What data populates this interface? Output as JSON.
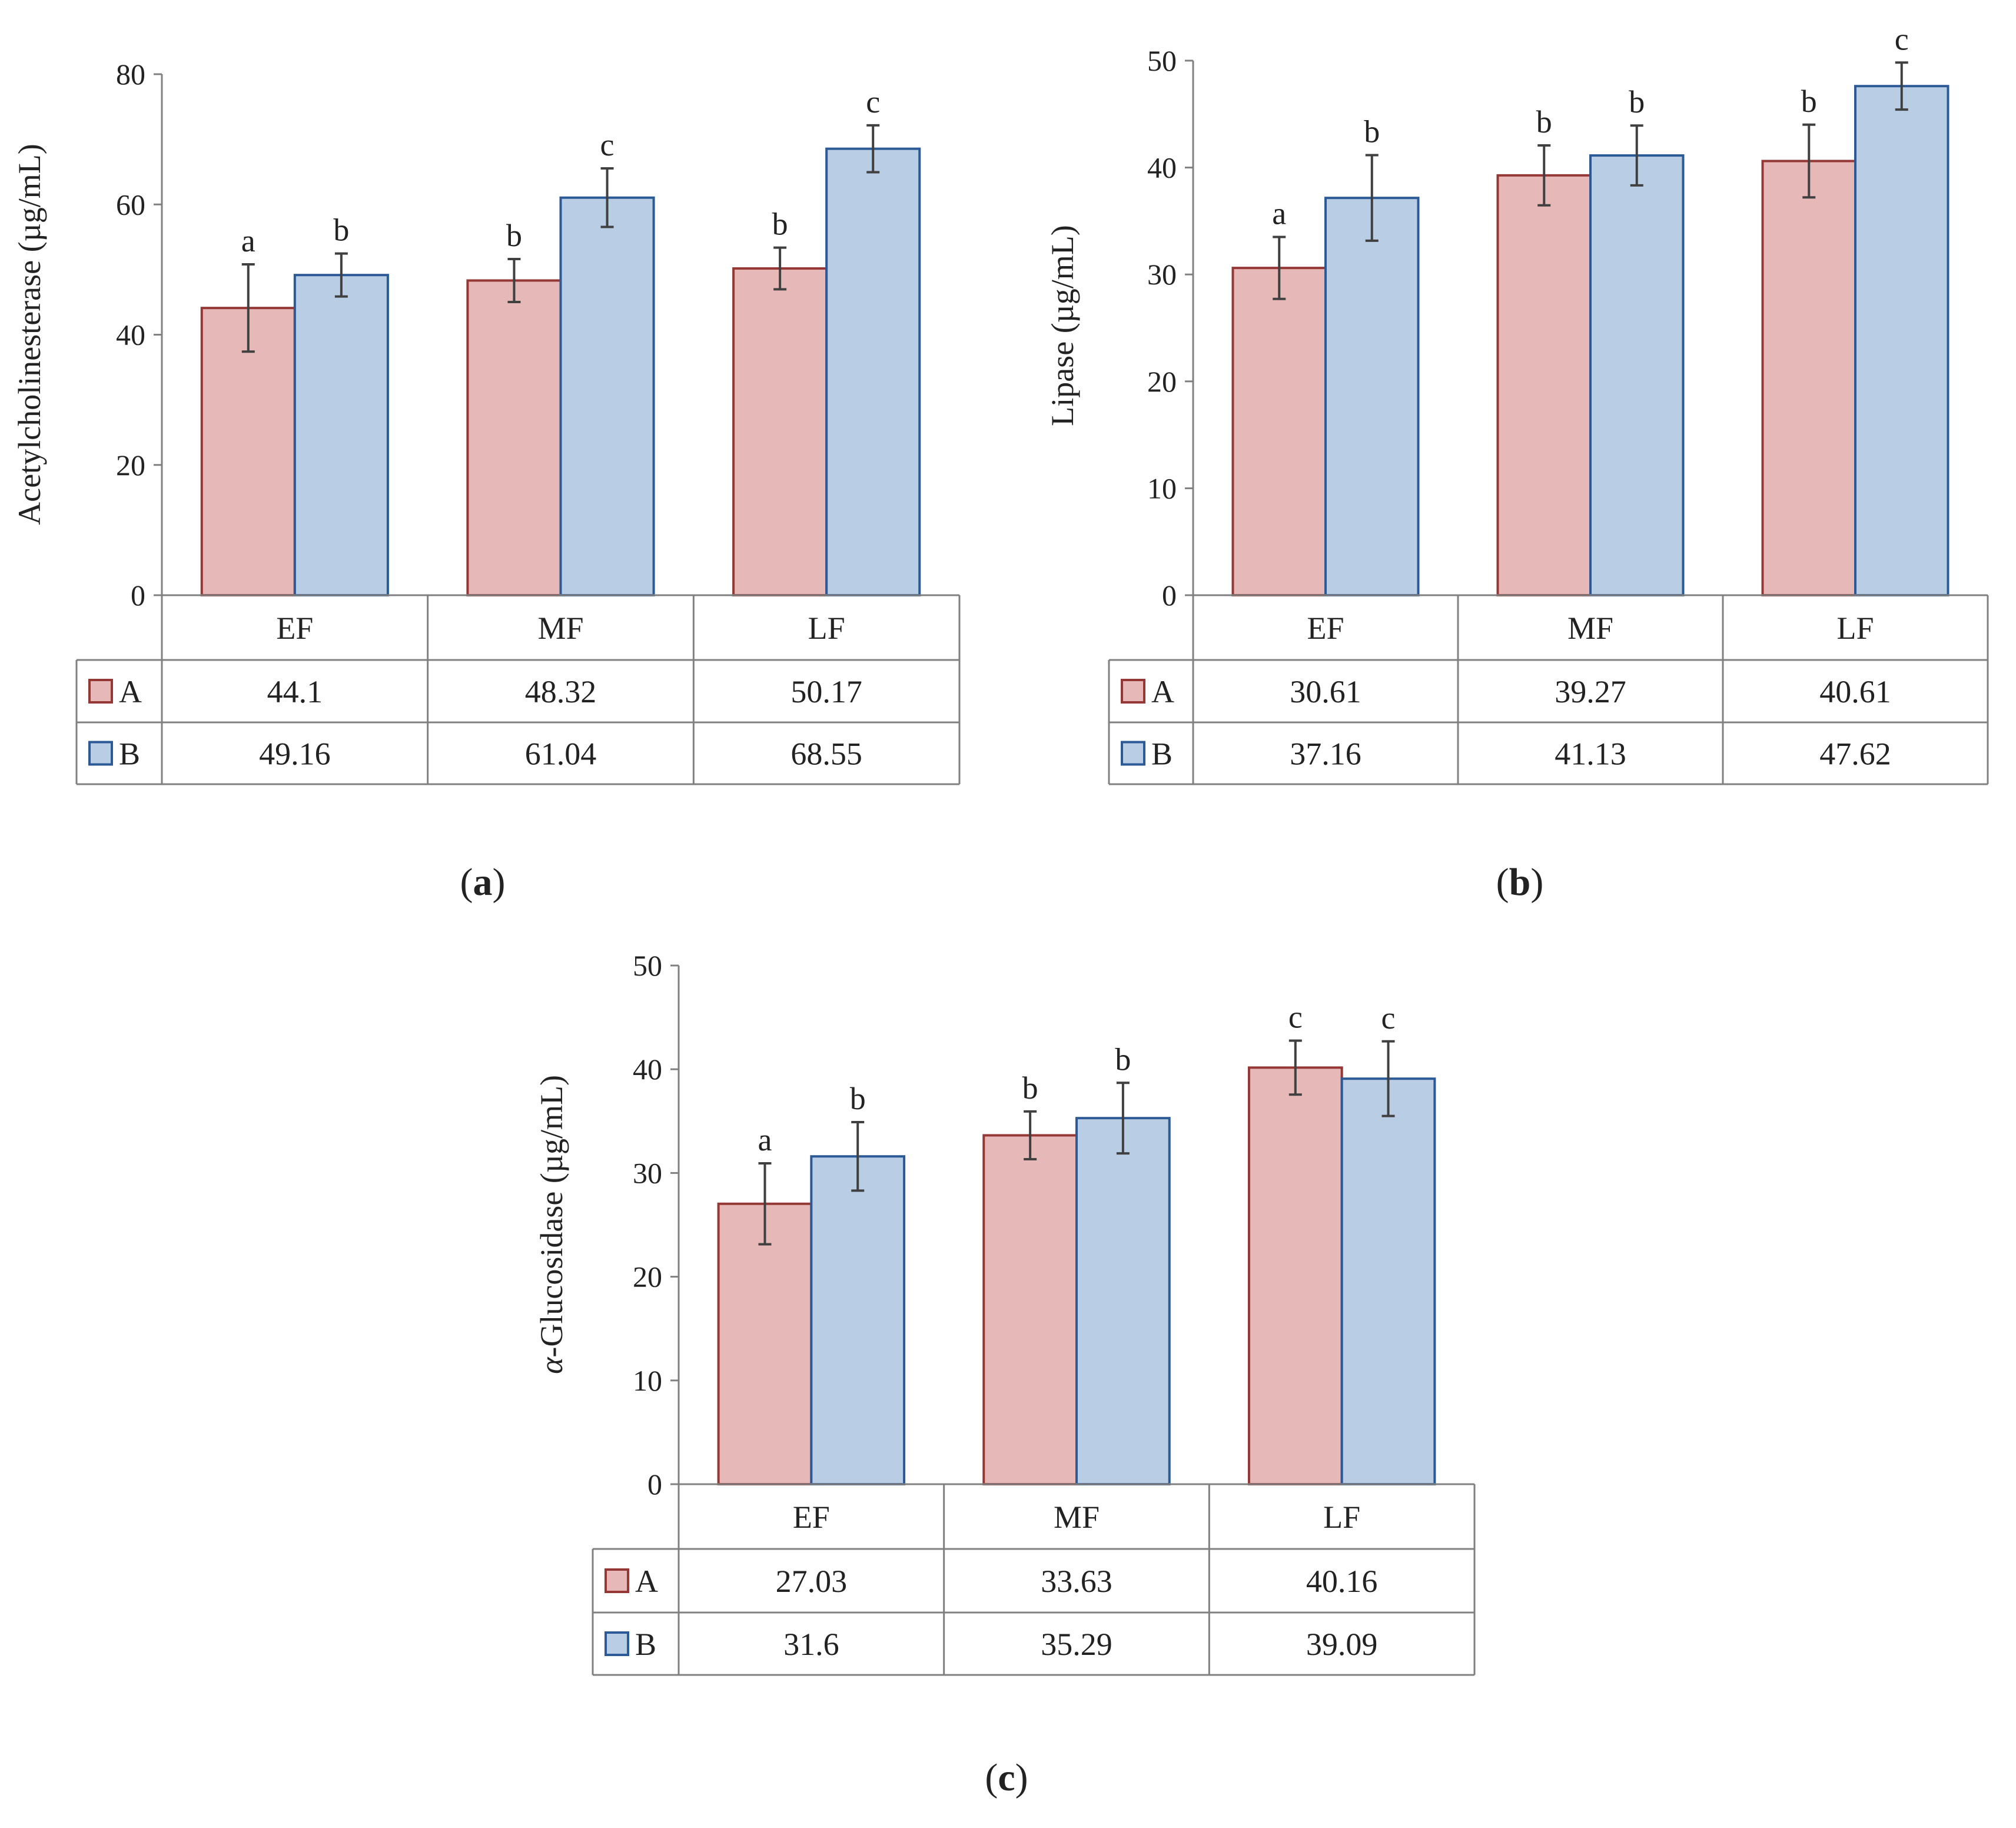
{
  "colors": {
    "A_fill": "#e6b8b7",
    "A_stroke": "#953735",
    "B_fill": "#b9cde5",
    "B_stroke": "#2c5a96",
    "axis": "#808080",
    "error": "#404040"
  },
  "chart_data": [
    {
      "type": "bar",
      "panel": "a",
      "ylabel": "Acetylcholinesterase (µg/mL)",
      "categories": [
        "EF",
        "MF",
        "LF"
      ],
      "ylim": [
        0,
        80
      ],
      "yticks": [
        0,
        20,
        40,
        60,
        80
      ],
      "series": [
        {
          "name": "A",
          "values": [
            44.1,
            48.32,
            50.17
          ],
          "errors": [
            6.7,
            3.3,
            3.2
          ],
          "labels": [
            "a",
            "b",
            "b"
          ]
        },
        {
          "name": "B",
          "values": [
            49.16,
            61.04,
            68.55
          ],
          "errors": [
            3.3,
            4.5,
            3.6
          ],
          "labels": [
            "b",
            "c",
            "c"
          ]
        }
      ],
      "table": {
        "A": [
          "44.1",
          "48.32",
          "50.17"
        ],
        "B": [
          "49.16",
          "61.04",
          "68.55"
        ]
      }
    },
    {
      "type": "bar",
      "panel": "b",
      "ylabel": "Lipase (µg/mL)",
      "categories": [
        "EF",
        "MF",
        "LF"
      ],
      "ylim": [
        0,
        50
      ],
      "yticks": [
        0,
        10,
        20,
        30,
        40,
        50
      ],
      "series": [
        {
          "name": "A",
          "values": [
            30.61,
            39.27,
            40.61
          ],
          "errors": [
            2.9,
            2.8,
            3.4
          ],
          "labels": [
            "a",
            "b",
            "b"
          ]
        },
        {
          "name": "B",
          "values": [
            37.16,
            41.13,
            47.62
          ],
          "errors": [
            4.0,
            2.8,
            2.2
          ],
          "labels": [
            "b",
            "b",
            "c"
          ]
        }
      ],
      "table": {
        "A": [
          "30.61",
          "39.27",
          "40.61"
        ],
        "B": [
          "37.16",
          "41.13",
          "47.62"
        ]
      }
    },
    {
      "type": "bar",
      "panel": "c",
      "ylabel_prefix": "α",
      "ylabel": "-Glucosidase (µg/mL)",
      "categories": [
        "EF",
        "MF",
        "LF"
      ],
      "ylim": [
        0,
        50
      ],
      "yticks": [
        0,
        10,
        20,
        30,
        40,
        50
      ],
      "series": [
        {
          "name": "A",
          "values": [
            27.03,
            33.63,
            40.16
          ],
          "errors": [
            3.9,
            2.3,
            2.6
          ],
          "labels": [
            "a",
            "b",
            "c"
          ]
        },
        {
          "name": "B",
          "values": [
            31.6,
            35.29,
            39.09
          ],
          "errors": [
            3.3,
            3.4,
            3.6
          ],
          "labels": [
            "b",
            "b",
            "c"
          ]
        }
      ],
      "table": {
        "A": [
          "27.03",
          "33.63",
          "40.16"
        ],
        "B": [
          "31.6",
          "35.29",
          "39.09"
        ]
      }
    }
  ]
}
